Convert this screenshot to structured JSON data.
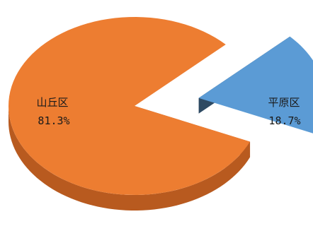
{
  "chart_data": {
    "type": "pie",
    "style": "3d-exploded",
    "slices": [
      {
        "label": "山丘区",
        "value": 81.3,
        "percent_label": "81.3%",
        "color": "#ED7D31",
        "side_color": "#B85A1F"
      },
      {
        "label": "平原区",
        "value": 18.7,
        "percent_label": "18.7%",
        "color": "#5B9BD5",
        "side_color": "#2E4A63"
      }
    ]
  }
}
